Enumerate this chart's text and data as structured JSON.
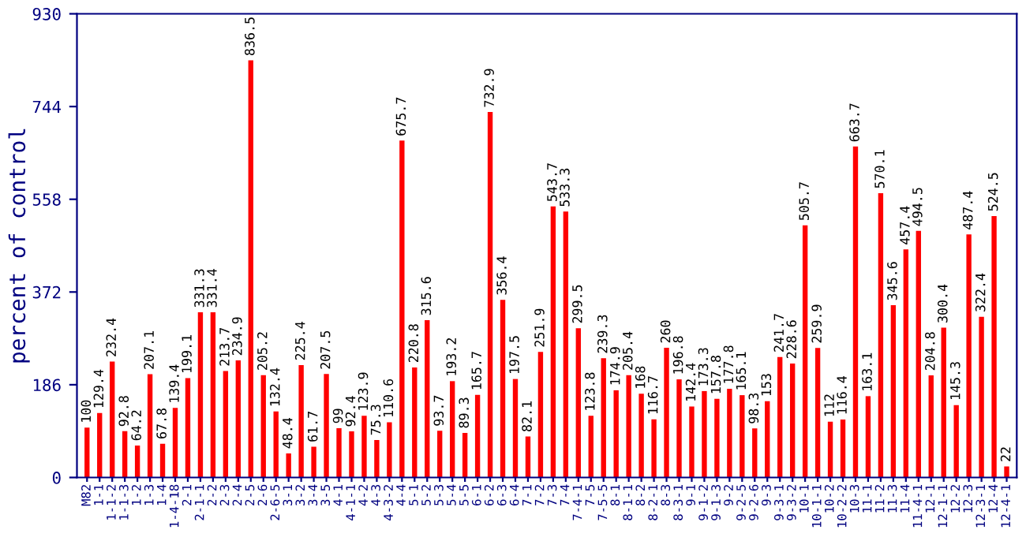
{
  "chart_data": {
    "type": "bar",
    "ylabel": "percent of control",
    "categories": [
      "M82",
      "1-1",
      "1-1-2",
      "1-1-3",
      "1-2",
      "1-3",
      "1-4",
      "1-4-18",
      "2-1",
      "2-1-1",
      "2-2",
      "2-3",
      "2-4",
      "2-5",
      "2-6",
      "2-6-5",
      "3-1",
      "3-2",
      "3-4",
      "3-5",
      "4-1",
      "4-1-1",
      "4-2",
      "4-3",
      "4-3-2",
      "4-4",
      "5-1",
      "5-2",
      "5-3",
      "5-4",
      "5-5",
      "6-1",
      "6-2",
      "6-3",
      "6-4",
      "7-1",
      "7-2",
      "7-3",
      "7-4",
      "7-4-1",
      "7-5",
      "7-5-5",
      "8-1",
      "8-1-1",
      "8-2",
      "8-2-1",
      "8-3",
      "8-3-1",
      "9-1",
      "9-1-2",
      "9-1-3",
      "9-2",
      "9-2-5",
      "9-2-6",
      "9-3",
      "9-3-1",
      "9-3-2",
      "10-1",
      "10-1-1",
      "10-2",
      "10-2-2",
      "10-3",
      "11-1",
      "11-2",
      "11-3",
      "11-4",
      "11-4-1",
      "12-1",
      "12-1-1",
      "12-2",
      "12-3",
      "12-3-1",
      "12-4",
      "12-4-1"
    ],
    "values": [
      100,
      129.4,
      232.4,
      92.8,
      64.2,
      207.1,
      67.8,
      139.4,
      199.1,
      331.3,
      331.4,
      213.7,
      234.9,
      836.5,
      205.2,
      132.4,
      48.4,
      225.4,
      61.7,
      207.5,
      99,
      92.4,
      123.9,
      75.3,
      110.6,
      675.7,
      220.8,
      315.6,
      93.7,
      193.2,
      89.3,
      165.7,
      732.9,
      356.4,
      197.5,
      82.1,
      251.9,
      543.7,
      533.3,
      299.5,
      123.8,
      239.3,
      174.9,
      205.4,
      168,
      116.7,
      260,
      196.8,
      142.4,
      173.3,
      157.8,
      177.8,
      165.1,
      98.3,
      153,
      241.7,
      228.6,
      505.7,
      259.9,
      112,
      116.4,
      663.7,
      163.1,
      570.1,
      345.6,
      457.4,
      494.5,
      204.8,
      300.4,
      145.3,
      487.4,
      322.4,
      524.5,
      22
    ],
    "color": "#ff0000",
    "ylim": [
      0,
      930
    ],
    "yticks": [
      0,
      186,
      372,
      558,
      744,
      930
    ],
    "grid": false,
    "data_labels": true
  }
}
